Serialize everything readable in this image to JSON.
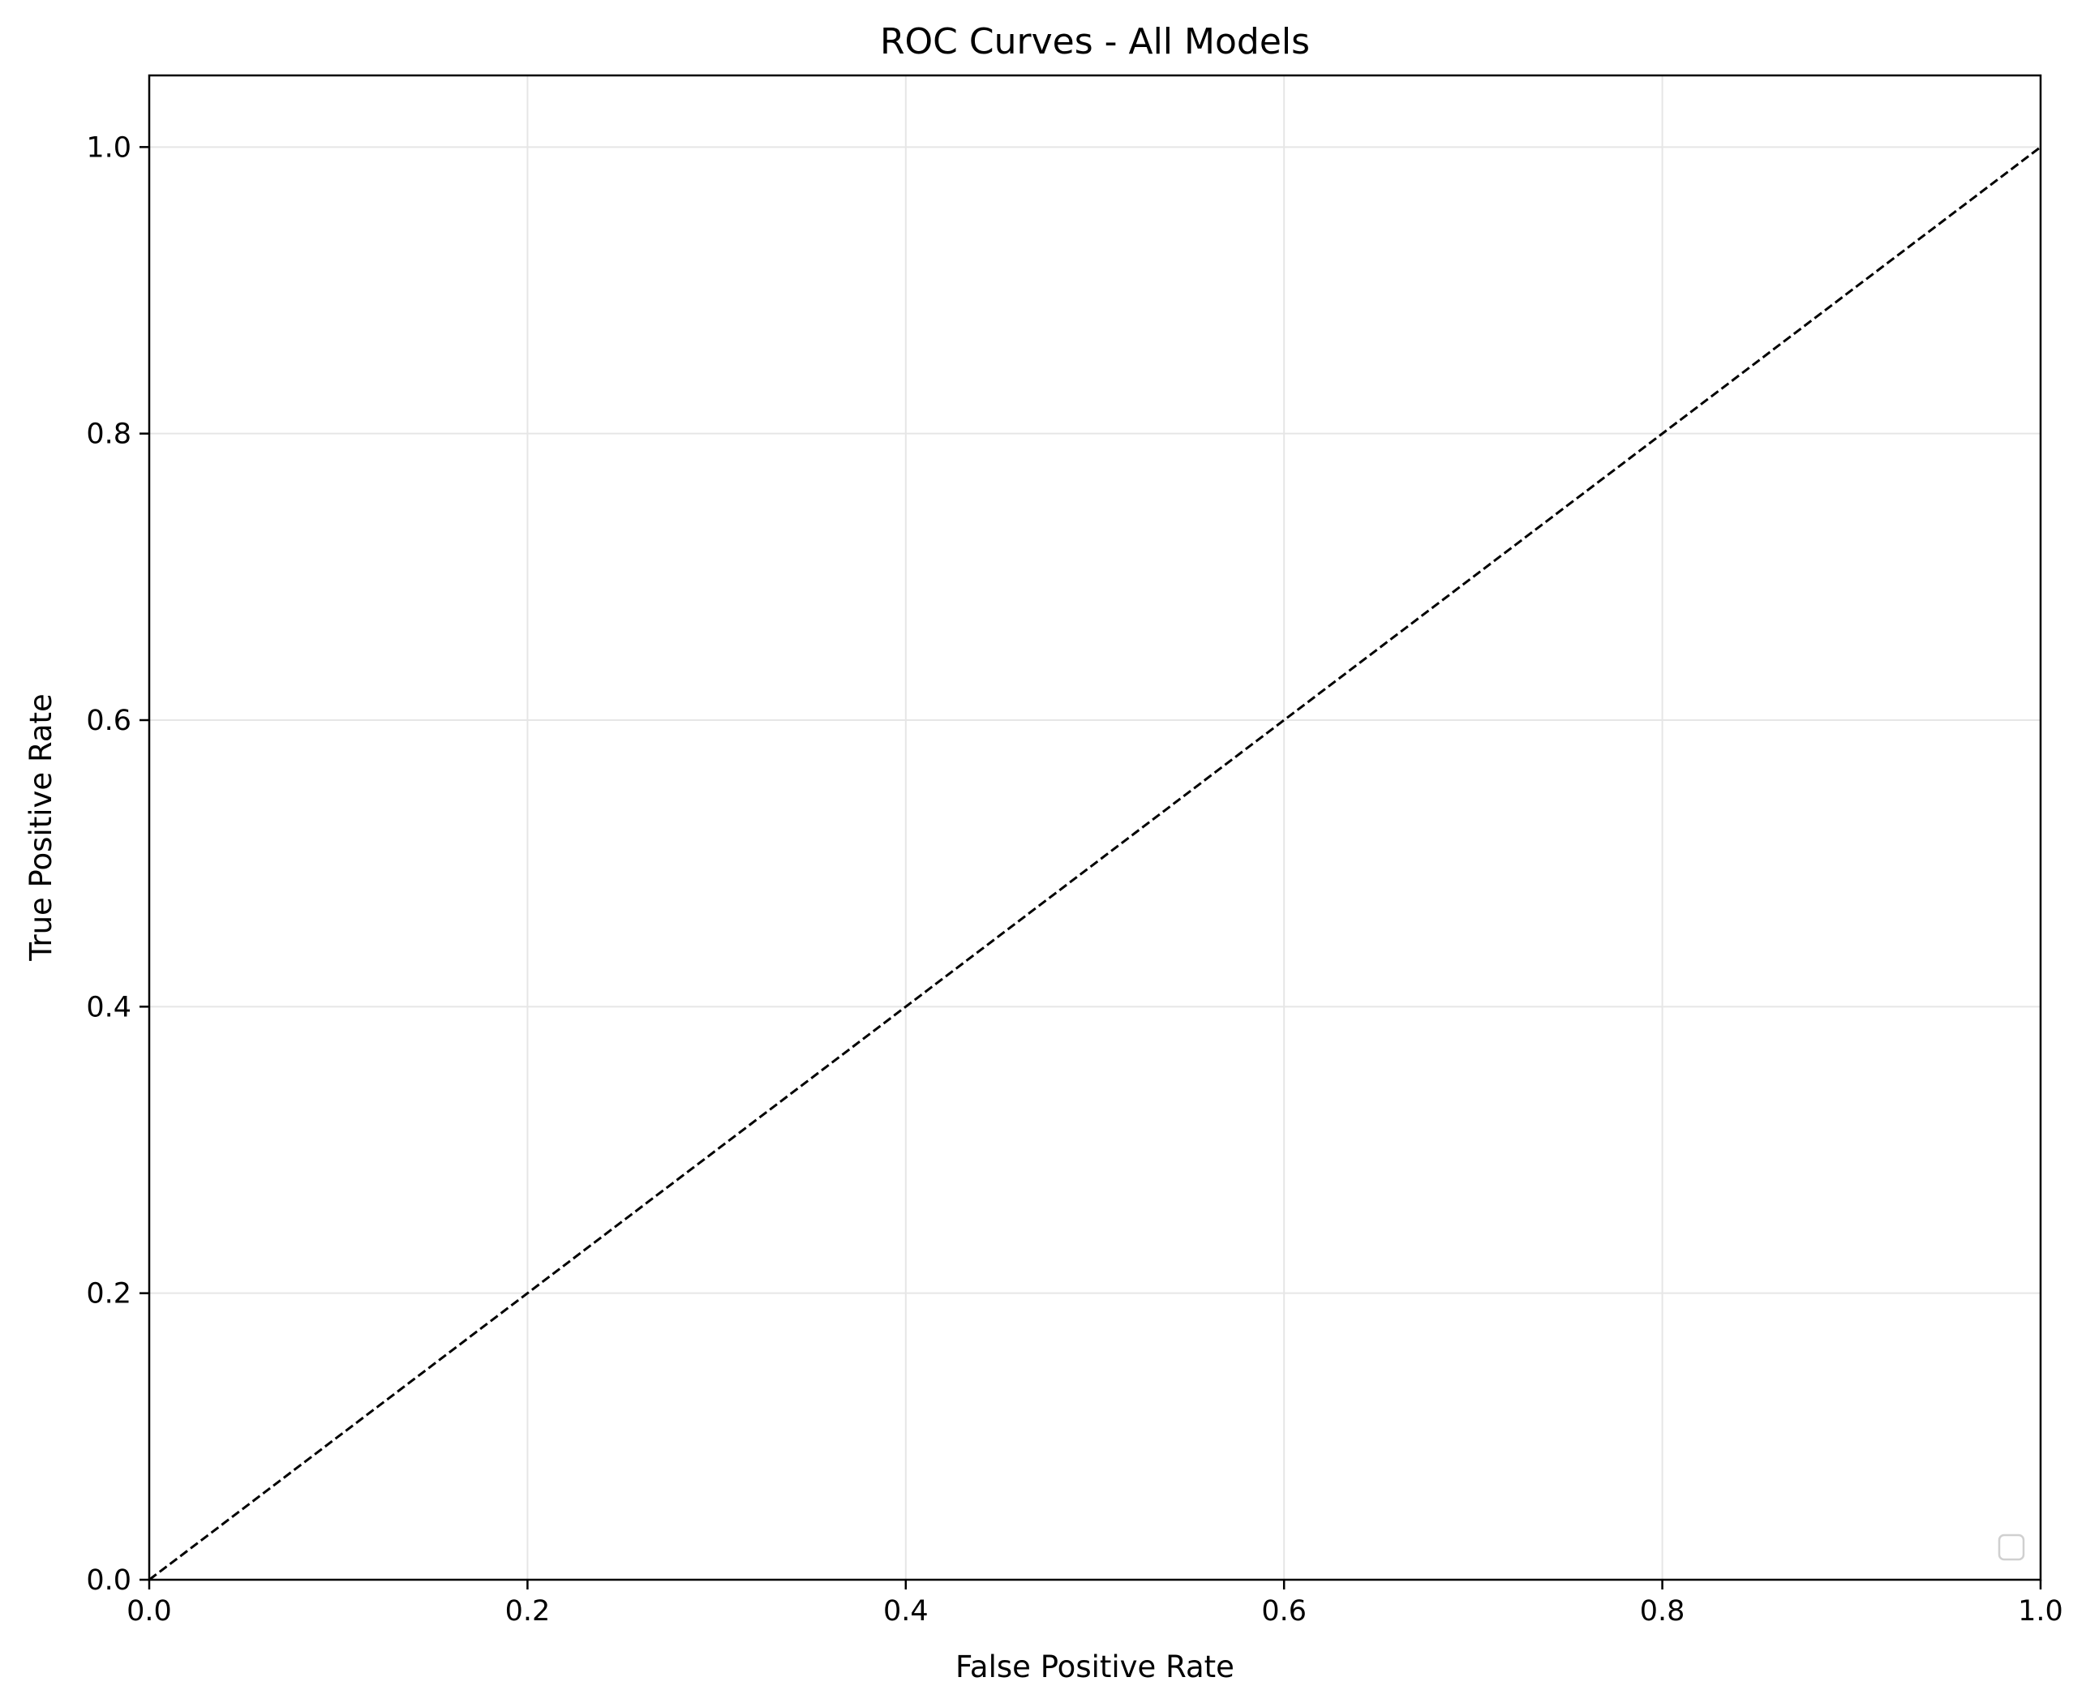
{
  "chart_data": {
    "type": "line",
    "title": "ROC Curves - All Models",
    "xlabel": "False Positive Rate",
    "ylabel": "True Positive Rate",
    "xlim": [
      0.0,
      1.0
    ],
    "ylim": [
      0.0,
      1.05
    ],
    "x_ticks": [
      0.0,
      0.2,
      0.4,
      0.6,
      0.8,
      1.0
    ],
    "y_ticks": [
      0.0,
      0.2,
      0.4,
      0.6,
      0.8,
      1.0
    ],
    "x_tick_labels": [
      "0.0",
      "0.2",
      "0.4",
      "0.6",
      "0.8",
      "1.0"
    ],
    "y_tick_labels": [
      "0.0",
      "0.2",
      "0.4",
      "0.6",
      "0.8",
      "1.0"
    ],
    "grid": true,
    "legend": {
      "placement": "lower-right",
      "entries": []
    },
    "series": [
      {
        "style": "dashed",
        "color": "#000000",
        "x": [
          0.0,
          1.0
        ],
        "y": [
          0.0,
          1.0
        ]
      }
    ]
  },
  "colors": {
    "grid": "#e6e6e6",
    "axes": "#000000",
    "legend_border": "#d0d0d0"
  }
}
